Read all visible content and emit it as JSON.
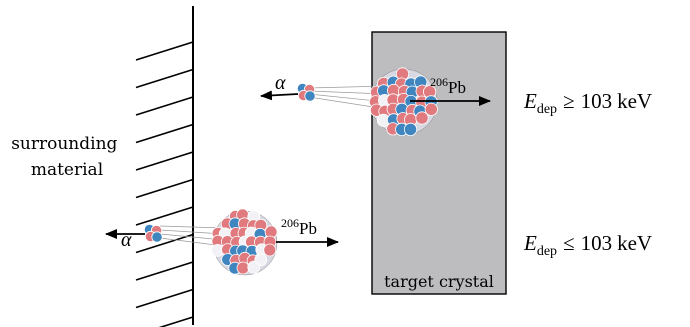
{
  "wall_label": {
    "line1": "surrounding",
    "line2": "material"
  },
  "crystal_label": "target crystal",
  "upper_event": {
    "alpha_symbol": "α",
    "recoil_mass": "206",
    "recoil_symbol": "Pb",
    "energy": {
      "E": "E",
      "sub": "dep",
      "relation": "≥",
      "value": "103",
      "unit": "keV"
    }
  },
  "lower_event": {
    "alpha_symbol": "α",
    "recoil_mass": "206",
    "recoil_symbol": "Pb",
    "energy": {
      "E": "E",
      "sub": "dep",
      "relation": "≤",
      "value": "103",
      "unit": "keV"
    }
  },
  "colors": {
    "crystal_fill": "#bdbdc0",
    "proton": "#e07a7e",
    "neutron": "#3f85c0",
    "nucleon_light": "#f1f1f6"
  },
  "icons": [
    "hatched-wall",
    "nucleus",
    "alpha-particle",
    "arrow"
  ]
}
